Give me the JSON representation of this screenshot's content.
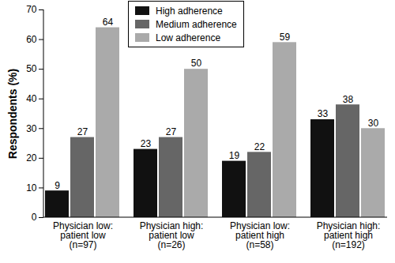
{
  "chart_data": {
    "type": "bar",
    "categories": [
      "Physician low:\npatient low\n(n=97)",
      "Physician high:\npatient low\n(n=26)",
      "Physician low:\npatient high\n(n=58)",
      "Physician high:\npatient high\n(n=192)"
    ],
    "series": [
      {
        "name": "High adherence",
        "color": "#111111",
        "values": [
          9,
          23,
          19,
          33
        ]
      },
      {
        "name": "Medium adherence",
        "color": "#666666",
        "values": [
          27,
          27,
          22,
          38
        ]
      },
      {
        "name": "Low adherence",
        "color": "#aaaaaa",
        "values": [
          64,
          50,
          59,
          30
        ]
      }
    ],
    "y_label": "Respondents (%)",
    "ylim": [
      0,
      70
    ],
    "yticks": [
      0,
      10,
      20,
      30,
      40,
      50,
      60,
      70
    ],
    "grid": false,
    "data_labels": true,
    "legend": "top"
  }
}
